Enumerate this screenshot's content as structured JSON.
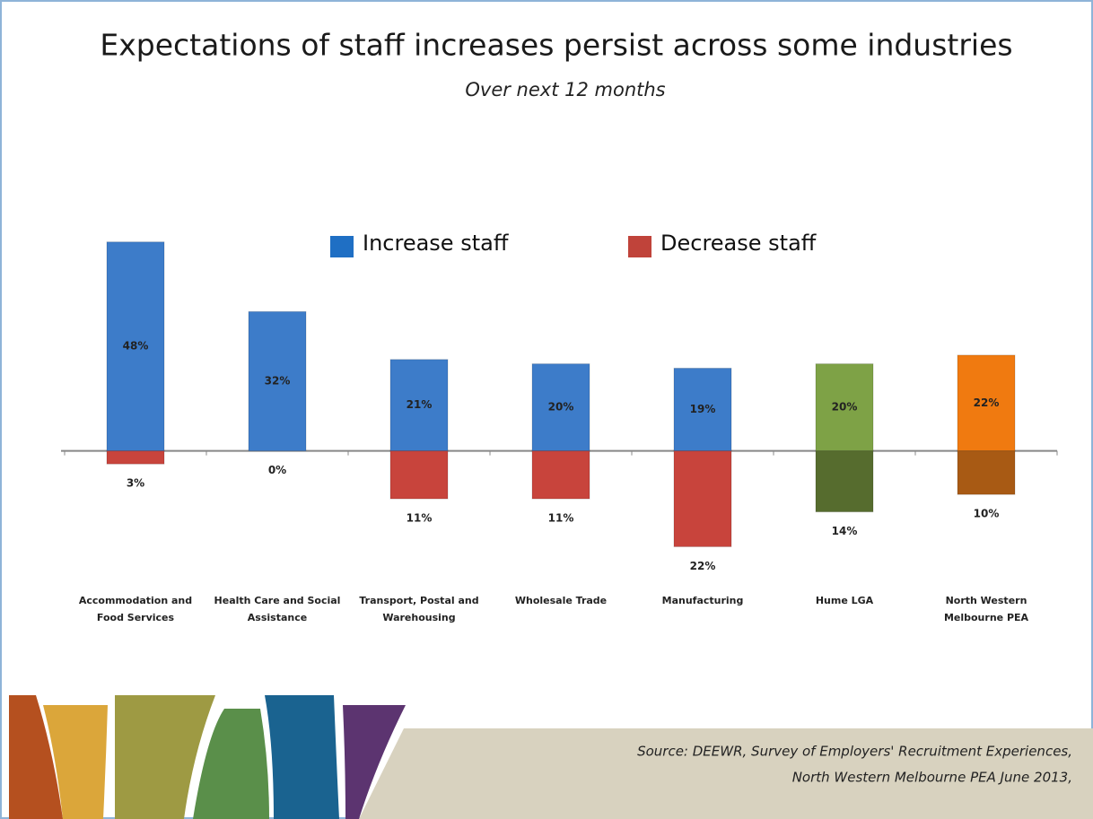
{
  "chart_data": {
    "type": "bar",
    "title": "Expectations of staff increases persist across some industries",
    "subtitle": "Over next 12 months",
    "categories": [
      "Accommodation and Food Services",
      "Health Care and Social Assistance",
      "Transport, Postal and Warehousing",
      "Wholesale Trade",
      "Manufacturing",
      "Hume LGA",
      "North Western Melbourne PEA"
    ],
    "series": [
      {
        "name": "Increase staff",
        "color": "#1f6fc4",
        "colors": [
          "#3d7cc9",
          "#3d7cc9",
          "#3d7cc9",
          "#3d7cc9",
          "#3d7cc9",
          "#7ea246",
          "#f07a10"
        ],
        "values": [
          48,
          32,
          21,
          20,
          19,
          20,
          22
        ],
        "value_labels": [
          "48%",
          "32%",
          "21%",
          "20%",
          "19%",
          "20%",
          "22%"
        ]
      },
      {
        "name": "Decrease staff",
        "color": "#c0433a",
        "colors": [
          "#c8443c",
          "#c8443c",
          "#c8443c",
          "#c8443c",
          "#c8443c",
          "#566c2e",
          "#a85a14"
        ],
        "values": [
          -3,
          0,
          -11,
          -11,
          -22,
          -14,
          -10
        ],
        "value_labels": [
          "3%",
          "0%",
          "11%",
          "11%",
          "22%",
          "14%",
          "10%"
        ]
      }
    ],
    "ylim": [
      -25,
      50
    ],
    "source": [
      "Source: DEEWR, Survey of Employers' Recruitment Experiences,",
      "North Western Melbourne PEA June 2013,"
    ]
  }
}
